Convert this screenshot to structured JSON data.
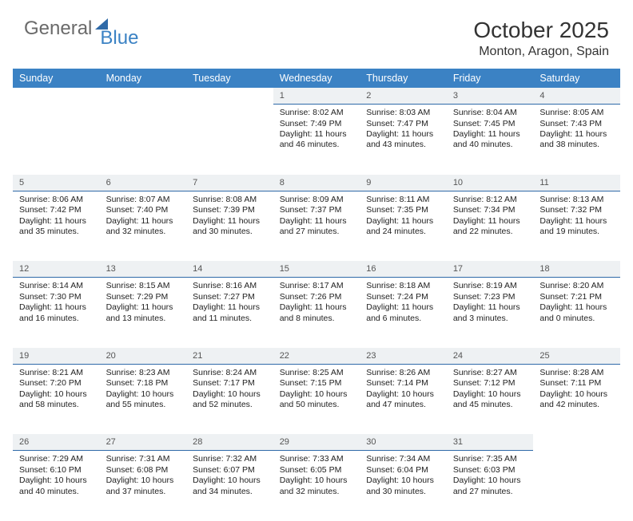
{
  "logo": {
    "general": "General",
    "blue": "Blue"
  },
  "title": "October 2025",
  "location": "Monton, Aragon, Spain",
  "colors": {
    "header_bg": "#3b82c4",
    "header_text": "#ffffff",
    "daynum_bg": "#eef1f3",
    "daynum_border": "#2f6aa8",
    "body_bg": "#ffffff",
    "text": "#222222"
  },
  "typography": {
    "title_fontsize": 28,
    "location_fontsize": 16,
    "header_fontsize": 12.5,
    "cell_fontsize": 10.5
  },
  "weekdays": [
    "Sunday",
    "Monday",
    "Tuesday",
    "Wednesday",
    "Thursday",
    "Friday",
    "Saturday"
  ],
  "weeks": [
    {
      "nums": [
        "",
        "",
        "",
        "1",
        "2",
        "3",
        "4"
      ],
      "cells": [
        null,
        null,
        null,
        {
          "sunrise": "Sunrise: 8:02 AM",
          "sunset": "Sunset: 7:49 PM",
          "day1": "Daylight: 11 hours",
          "day2": "and 46 minutes."
        },
        {
          "sunrise": "Sunrise: 8:03 AM",
          "sunset": "Sunset: 7:47 PM",
          "day1": "Daylight: 11 hours",
          "day2": "and 43 minutes."
        },
        {
          "sunrise": "Sunrise: 8:04 AM",
          "sunset": "Sunset: 7:45 PM",
          "day1": "Daylight: 11 hours",
          "day2": "and 40 minutes."
        },
        {
          "sunrise": "Sunrise: 8:05 AM",
          "sunset": "Sunset: 7:43 PM",
          "day1": "Daylight: 11 hours",
          "day2": "and 38 minutes."
        }
      ]
    },
    {
      "nums": [
        "5",
        "6",
        "7",
        "8",
        "9",
        "10",
        "11"
      ],
      "cells": [
        {
          "sunrise": "Sunrise: 8:06 AM",
          "sunset": "Sunset: 7:42 PM",
          "day1": "Daylight: 11 hours",
          "day2": "and 35 minutes."
        },
        {
          "sunrise": "Sunrise: 8:07 AM",
          "sunset": "Sunset: 7:40 PM",
          "day1": "Daylight: 11 hours",
          "day2": "and 32 minutes."
        },
        {
          "sunrise": "Sunrise: 8:08 AM",
          "sunset": "Sunset: 7:39 PM",
          "day1": "Daylight: 11 hours",
          "day2": "and 30 minutes."
        },
        {
          "sunrise": "Sunrise: 8:09 AM",
          "sunset": "Sunset: 7:37 PM",
          "day1": "Daylight: 11 hours",
          "day2": "and 27 minutes."
        },
        {
          "sunrise": "Sunrise: 8:11 AM",
          "sunset": "Sunset: 7:35 PM",
          "day1": "Daylight: 11 hours",
          "day2": "and 24 minutes."
        },
        {
          "sunrise": "Sunrise: 8:12 AM",
          "sunset": "Sunset: 7:34 PM",
          "day1": "Daylight: 11 hours",
          "day2": "and 22 minutes."
        },
        {
          "sunrise": "Sunrise: 8:13 AM",
          "sunset": "Sunset: 7:32 PM",
          "day1": "Daylight: 11 hours",
          "day2": "and 19 minutes."
        }
      ]
    },
    {
      "nums": [
        "12",
        "13",
        "14",
        "15",
        "16",
        "17",
        "18"
      ],
      "cells": [
        {
          "sunrise": "Sunrise: 8:14 AM",
          "sunset": "Sunset: 7:30 PM",
          "day1": "Daylight: 11 hours",
          "day2": "and 16 minutes."
        },
        {
          "sunrise": "Sunrise: 8:15 AM",
          "sunset": "Sunset: 7:29 PM",
          "day1": "Daylight: 11 hours",
          "day2": "and 13 minutes."
        },
        {
          "sunrise": "Sunrise: 8:16 AM",
          "sunset": "Sunset: 7:27 PM",
          "day1": "Daylight: 11 hours",
          "day2": "and 11 minutes."
        },
        {
          "sunrise": "Sunrise: 8:17 AM",
          "sunset": "Sunset: 7:26 PM",
          "day1": "Daylight: 11 hours",
          "day2": "and 8 minutes."
        },
        {
          "sunrise": "Sunrise: 8:18 AM",
          "sunset": "Sunset: 7:24 PM",
          "day1": "Daylight: 11 hours",
          "day2": "and 6 minutes."
        },
        {
          "sunrise": "Sunrise: 8:19 AM",
          "sunset": "Sunset: 7:23 PM",
          "day1": "Daylight: 11 hours",
          "day2": "and 3 minutes."
        },
        {
          "sunrise": "Sunrise: 8:20 AM",
          "sunset": "Sunset: 7:21 PM",
          "day1": "Daylight: 11 hours",
          "day2": "and 0 minutes."
        }
      ]
    },
    {
      "nums": [
        "19",
        "20",
        "21",
        "22",
        "23",
        "24",
        "25"
      ],
      "cells": [
        {
          "sunrise": "Sunrise: 8:21 AM",
          "sunset": "Sunset: 7:20 PM",
          "day1": "Daylight: 10 hours",
          "day2": "and 58 minutes."
        },
        {
          "sunrise": "Sunrise: 8:23 AM",
          "sunset": "Sunset: 7:18 PM",
          "day1": "Daylight: 10 hours",
          "day2": "and 55 minutes."
        },
        {
          "sunrise": "Sunrise: 8:24 AM",
          "sunset": "Sunset: 7:17 PM",
          "day1": "Daylight: 10 hours",
          "day2": "and 52 minutes."
        },
        {
          "sunrise": "Sunrise: 8:25 AM",
          "sunset": "Sunset: 7:15 PM",
          "day1": "Daylight: 10 hours",
          "day2": "and 50 minutes."
        },
        {
          "sunrise": "Sunrise: 8:26 AM",
          "sunset": "Sunset: 7:14 PM",
          "day1": "Daylight: 10 hours",
          "day2": "and 47 minutes."
        },
        {
          "sunrise": "Sunrise: 8:27 AM",
          "sunset": "Sunset: 7:12 PM",
          "day1": "Daylight: 10 hours",
          "day2": "and 45 minutes."
        },
        {
          "sunrise": "Sunrise: 8:28 AM",
          "sunset": "Sunset: 7:11 PM",
          "day1": "Daylight: 10 hours",
          "day2": "and 42 minutes."
        }
      ]
    },
    {
      "nums": [
        "26",
        "27",
        "28",
        "29",
        "30",
        "31",
        ""
      ],
      "cells": [
        {
          "sunrise": "Sunrise: 7:29 AM",
          "sunset": "Sunset: 6:10 PM",
          "day1": "Daylight: 10 hours",
          "day2": "and 40 minutes."
        },
        {
          "sunrise": "Sunrise: 7:31 AM",
          "sunset": "Sunset: 6:08 PM",
          "day1": "Daylight: 10 hours",
          "day2": "and 37 minutes."
        },
        {
          "sunrise": "Sunrise: 7:32 AM",
          "sunset": "Sunset: 6:07 PM",
          "day1": "Daylight: 10 hours",
          "day2": "and 34 minutes."
        },
        {
          "sunrise": "Sunrise: 7:33 AM",
          "sunset": "Sunset: 6:05 PM",
          "day1": "Daylight: 10 hours",
          "day2": "and 32 minutes."
        },
        {
          "sunrise": "Sunrise: 7:34 AM",
          "sunset": "Sunset: 6:04 PM",
          "day1": "Daylight: 10 hours",
          "day2": "and 30 minutes."
        },
        {
          "sunrise": "Sunrise: 7:35 AM",
          "sunset": "Sunset: 6:03 PM",
          "day1": "Daylight: 10 hours",
          "day2": "and 27 minutes."
        },
        null
      ]
    }
  ]
}
